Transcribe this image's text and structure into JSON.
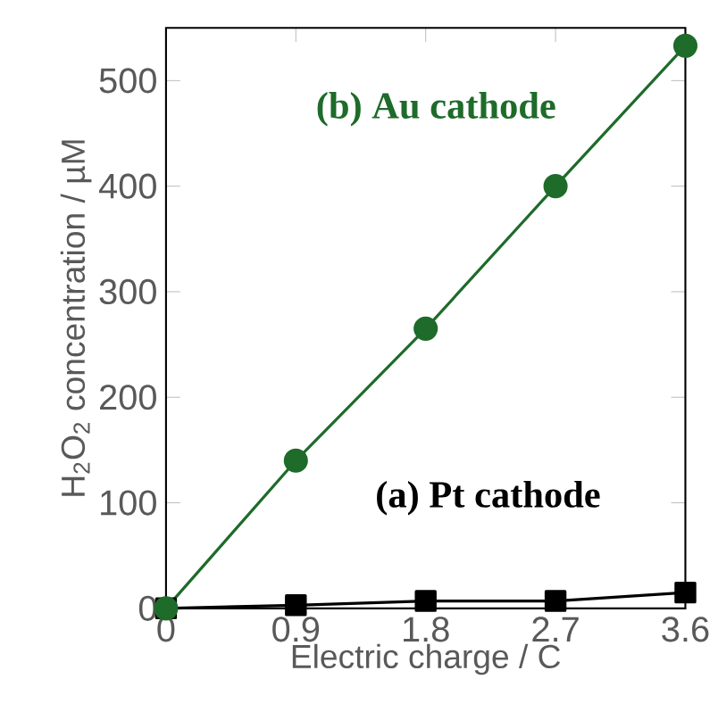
{
  "chart_data": {
    "type": "line",
    "xlabel": "Electric charge / C",
    "ylabel": "H$_{2}$O$_{2}$ concentration / µM",
    "x": [
      0,
      0.9,
      1.8,
      2.7,
      3.6
    ],
    "series": [
      {
        "name": "(a) Pt cathode",
        "color": "#000000",
        "marker": "square",
        "values": [
          0,
          3,
          7,
          7,
          15
        ]
      },
      {
        "name": "(b) Au cathode",
        "color": "#1e6b2a",
        "marker": "circle",
        "values": [
          0,
          140,
          265,
          400,
          533
        ]
      }
    ],
    "xlim": [
      0,
      3.6
    ],
    "ylim": [
      0,
      550
    ],
    "xticks": [
      0,
      0.9,
      1.8,
      2.7,
      3.6
    ],
    "yticks": [
      0,
      100,
      200,
      300,
      400,
      500
    ],
    "grid": false,
    "line_style": "solid"
  }
}
